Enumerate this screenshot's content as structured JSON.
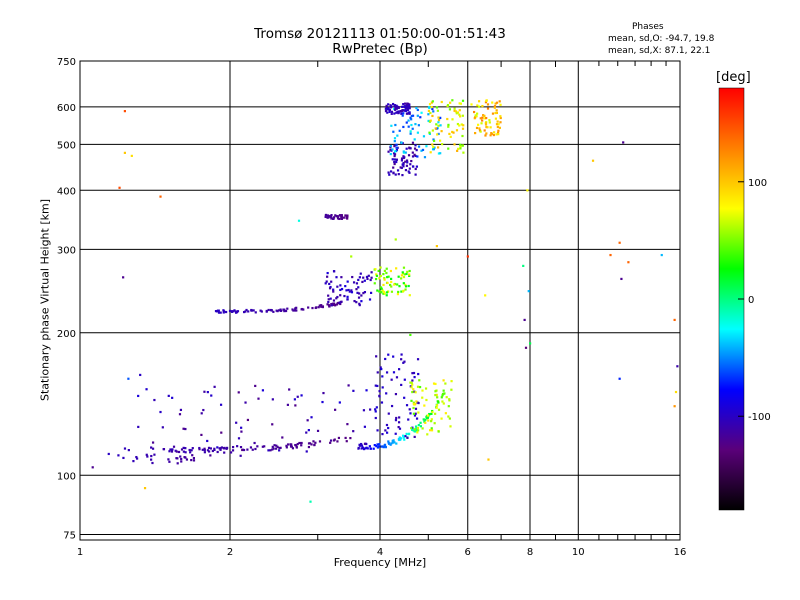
{
  "chart_data": {
    "type": "scatter",
    "title": "Tromsø 20121113 01:50:00-01:51:43",
    "subtitle": "RwPretec (Bp)",
    "xlabel": "Frequency [MHz]",
    "ylabel": "Stationary phase Virtual Height [km]",
    "x_scale": "log",
    "y_scale": "log",
    "xlim": [
      1,
      16
    ],
    "ylim": [
      73,
      750
    ],
    "x_ticks": [
      1,
      2,
      4,
      6,
      8,
      10,
      16
    ],
    "x_minor_grid": [
      3,
      5,
      7,
      9
    ],
    "y_ticks": [
      75,
      100,
      200,
      300,
      400,
      500,
      600,
      750
    ],
    "grid": true,
    "phases_label": "Phases",
    "phase_stats_o": "mean, sd,O: -94.7, 19.8",
    "phase_stats_x": "mean, sd,X: 87.1, 22.1",
    "colorbar": {
      "label": "[deg]",
      "range": [
        -180,
        180
      ],
      "ticks": [
        100,
        0,
        -100
      ],
      "colors": [
        "#000000",
        "#5a007a",
        "#0000ff",
        "#00ffff",
        "#00ff00",
        "#ffff00",
        "#ff8000",
        "#ff0000"
      ]
    },
    "series": [
      {
        "clusters": [
          {
            "x": [
              1.13,
              1.85
            ],
            "y": [
              106,
              115
            ],
            "phase": [
              -100,
              -120
            ],
            "trend": "flat"
          },
          {
            "x": [
              1.5,
              3.5
            ],
            "y": [
              113,
              120
            ],
            "phase": [
              -105,
              -125
            ],
            "trend": "curve_up"
          },
          {
            "x": [
              3.6,
              5.4
            ],
            "y": [
              115,
              150
            ],
            "phase": [
              -105,
              45
            ],
            "trend": "curve_up"
          },
          {
            "x": [
              1.3,
              3.9
            ],
            "y": [
              112,
              155
            ],
            "phase": [
              -90,
              -125
            ],
            "trend": "cloud"
          },
          {
            "x": [
              3.9,
              4.8
            ],
            "y": [
              120,
              185
            ],
            "phase": [
              -110,
              -90
            ],
            "trend": "cloud"
          },
          {
            "x": [
              4.6,
              5.6
            ],
            "y": [
              122,
              160
            ],
            "phase": [
              40,
              90
            ],
            "trend": "cloud"
          },
          {
            "x": [
              1.85,
              3.4
            ],
            "y": [
              222,
              232
            ],
            "phase": [
              -100,
              -125
            ],
            "trend": "curve_up"
          },
          {
            "x": [
              3.1,
              3.85
            ],
            "y": [
              228,
              270
            ],
            "phase": [
              -90,
              -115
            ],
            "trend": "cloud"
          },
          {
            "x": [
              3.9,
              4.6
            ],
            "y": [
              240,
              275
            ],
            "phase": [
              20,
              90
            ],
            "trend": "cloud"
          },
          {
            "x": [
              3.1,
              3.45
            ],
            "y": [
              348,
              355
            ],
            "phase": [
              -115,
              -125
            ],
            "trend": "flat"
          },
          {
            "x": [
              4.15,
              4.75
            ],
            "y": [
              430,
              505
            ],
            "phase": [
              -120,
              -95
            ],
            "trend": "cloud"
          },
          {
            "x": [
              4.2,
              5.3
            ],
            "y": [
              470,
              600
            ],
            "phase": [
              -70,
              -20
            ],
            "trend": "cloud"
          },
          {
            "x": [
              5.0,
              5.9
            ],
            "y": [
              480,
              620
            ],
            "phase": [
              40,
              110
            ],
            "trend": "cloud"
          },
          {
            "x": [
              6.1,
              7.0
            ],
            "y": [
              520,
              620
            ],
            "phase": [
              60,
              130
            ],
            "trend": "cloud"
          },
          {
            "x": [
              4.1,
              4.6
            ],
            "y": [
              580,
              610
            ],
            "phase": [
              -115,
              -95
            ],
            "trend": "cloud"
          }
        ],
        "points": [
          {
            "x": 1.23,
            "y": 588,
            "phase": 150
          },
          {
            "x": 1.23,
            "y": 480,
            "phase": 100
          },
          {
            "x": 1.27,
            "y": 473,
            "phase": 90
          },
          {
            "x": 1.2,
            "y": 405,
            "phase": 150
          },
          {
            "x": 1.45,
            "y": 388,
            "phase": 140
          },
          {
            "x": 1.22,
            "y": 262,
            "phase": -120
          },
          {
            "x": 1.25,
            "y": 160,
            "phase": -60
          },
          {
            "x": 1.32,
            "y": 163,
            "phase": -100
          },
          {
            "x": 1.35,
            "y": 94,
            "phase": 100
          },
          {
            "x": 1.06,
            "y": 104,
            "phase": -120
          },
          {
            "x": 2.75,
            "y": 345,
            "phase": -20
          },
          {
            "x": 3.5,
            "y": 290,
            "phase": 60
          },
          {
            "x": 5.2,
            "y": 305,
            "phase": 100
          },
          {
            "x": 6.0,
            "y": 290,
            "phase": 160
          },
          {
            "x": 6.5,
            "y": 240,
            "phase": 80
          },
          {
            "x": 6.6,
            "y": 108,
            "phase": 100
          },
          {
            "x": 7.75,
            "y": 277,
            "phase": 0
          },
          {
            "x": 7.95,
            "y": 245,
            "phase": -40
          },
          {
            "x": 7.8,
            "y": 213,
            "phase": -120
          },
          {
            "x": 7.85,
            "y": 186,
            "phase": -130
          },
          {
            "x": 8.0,
            "y": 190,
            "phase": 10
          },
          {
            "x": 7.9,
            "y": 400,
            "phase": 80
          },
          {
            "x": 10.7,
            "y": 462,
            "phase": 100
          },
          {
            "x": 11.6,
            "y": 292,
            "phase": 140
          },
          {
            "x": 12.1,
            "y": 310,
            "phase": 140
          },
          {
            "x": 12.3,
            "y": 505,
            "phase": -120
          },
          {
            "x": 12.2,
            "y": 260,
            "phase": -120
          },
          {
            "x": 12.6,
            "y": 282,
            "phase": 140
          },
          {
            "x": 12.1,
            "y": 160,
            "phase": -70
          },
          {
            "x": 14.7,
            "y": 292,
            "phase": -40
          },
          {
            "x": 15.6,
            "y": 213,
            "phase": 140
          },
          {
            "x": 15.8,
            "y": 170,
            "phase": -110
          },
          {
            "x": 15.7,
            "y": 150,
            "phase": 90
          },
          {
            "x": 15.6,
            "y": 140,
            "phase": 120
          },
          {
            "x": 2.9,
            "y": 88,
            "phase": -10
          },
          {
            "x": 2.1,
            "y": 110,
            "phase": -110
          },
          {
            "x": 4.6,
            "y": 198,
            "phase": 40
          },
          {
            "x": 4.3,
            "y": 315,
            "phase": 60
          }
        ]
      }
    ]
  }
}
